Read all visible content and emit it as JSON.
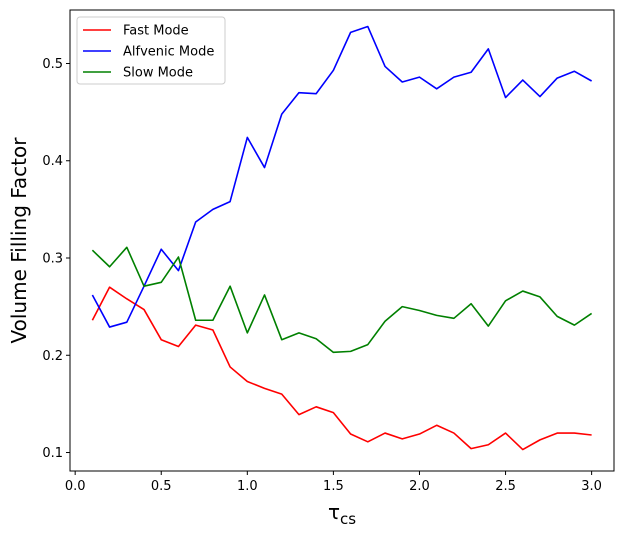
{
  "chart_data": {
    "type": "line",
    "xlabel": "τ",
    "xlabel_sub": "cs",
    "ylabel": "Volume Filling Factor",
    "xlim": [
      -0.03,
      3.13
    ],
    "ylim": [
      0.081,
      0.555
    ],
    "x_ticks": [
      0.0,
      0.5,
      1.0,
      1.5,
      2.0,
      2.5,
      3.0
    ],
    "x_tick_labels": [
      "0.0",
      "0.5",
      "1.0",
      "1.5",
      "2.0",
      "2.5",
      "3.0"
    ],
    "y_ticks": [
      0.1,
      0.2,
      0.3,
      0.4,
      0.5
    ],
    "y_tick_labels": [
      "0.1",
      "0.2",
      "0.3",
      "0.4",
      "0.5"
    ],
    "grid": false,
    "legend_position": "upper-left",
    "x": [
      0.1,
      0.2,
      0.3,
      0.4,
      0.5,
      0.6,
      0.7,
      0.8,
      0.9,
      1.0,
      1.1,
      1.2,
      1.3,
      1.4,
      1.5,
      1.6,
      1.7,
      1.8,
      1.9,
      2.0,
      2.1,
      2.2,
      2.3,
      2.4,
      2.5,
      2.6,
      2.7,
      2.8,
      2.9,
      3.0
    ],
    "series": [
      {
        "name": "Fast Mode",
        "color": "#ff0000",
        "values": [
          0.236,
          0.27,
          0.258,
          0.247,
          0.216,
          0.209,
          0.231,
          0.226,
          0.188,
          0.173,
          0.166,
          0.16,
          0.139,
          0.147,
          0.141,
          0.119,
          0.111,
          0.12,
          0.114,
          0.119,
          0.128,
          0.12,
          0.104,
          0.108,
          0.12,
          0.103,
          0.113,
          0.12,
          0.12,
          0.118
        ]
      },
      {
        "name": "Alfvenic Mode",
        "color": "#0000ff",
        "values": [
          0.262,
          0.229,
          0.234,
          0.271,
          0.309,
          0.287,
          0.337,
          0.35,
          0.358,
          0.424,
          0.393,
          0.448,
          0.47,
          0.469,
          0.493,
          0.532,
          0.538,
          0.497,
          0.481,
          0.486,
          0.474,
          0.486,
          0.491,
          0.515,
          0.465,
          0.483,
          0.466,
          0.485,
          0.492,
          0.482
        ]
      },
      {
        "name": "Slow Mode",
        "color": "#008000",
        "values": [
          0.308,
          0.291,
          0.311,
          0.271,
          0.275,
          0.301,
          0.236,
          0.236,
          0.271,
          0.223,
          0.262,
          0.216,
          0.223,
          0.217,
          0.203,
          0.204,
          0.211,
          0.235,
          0.25,
          0.246,
          0.241,
          0.238,
          0.253,
          0.23,
          0.256,
          0.266,
          0.26,
          0.24,
          0.231,
          0.243
        ]
      }
    ]
  }
}
